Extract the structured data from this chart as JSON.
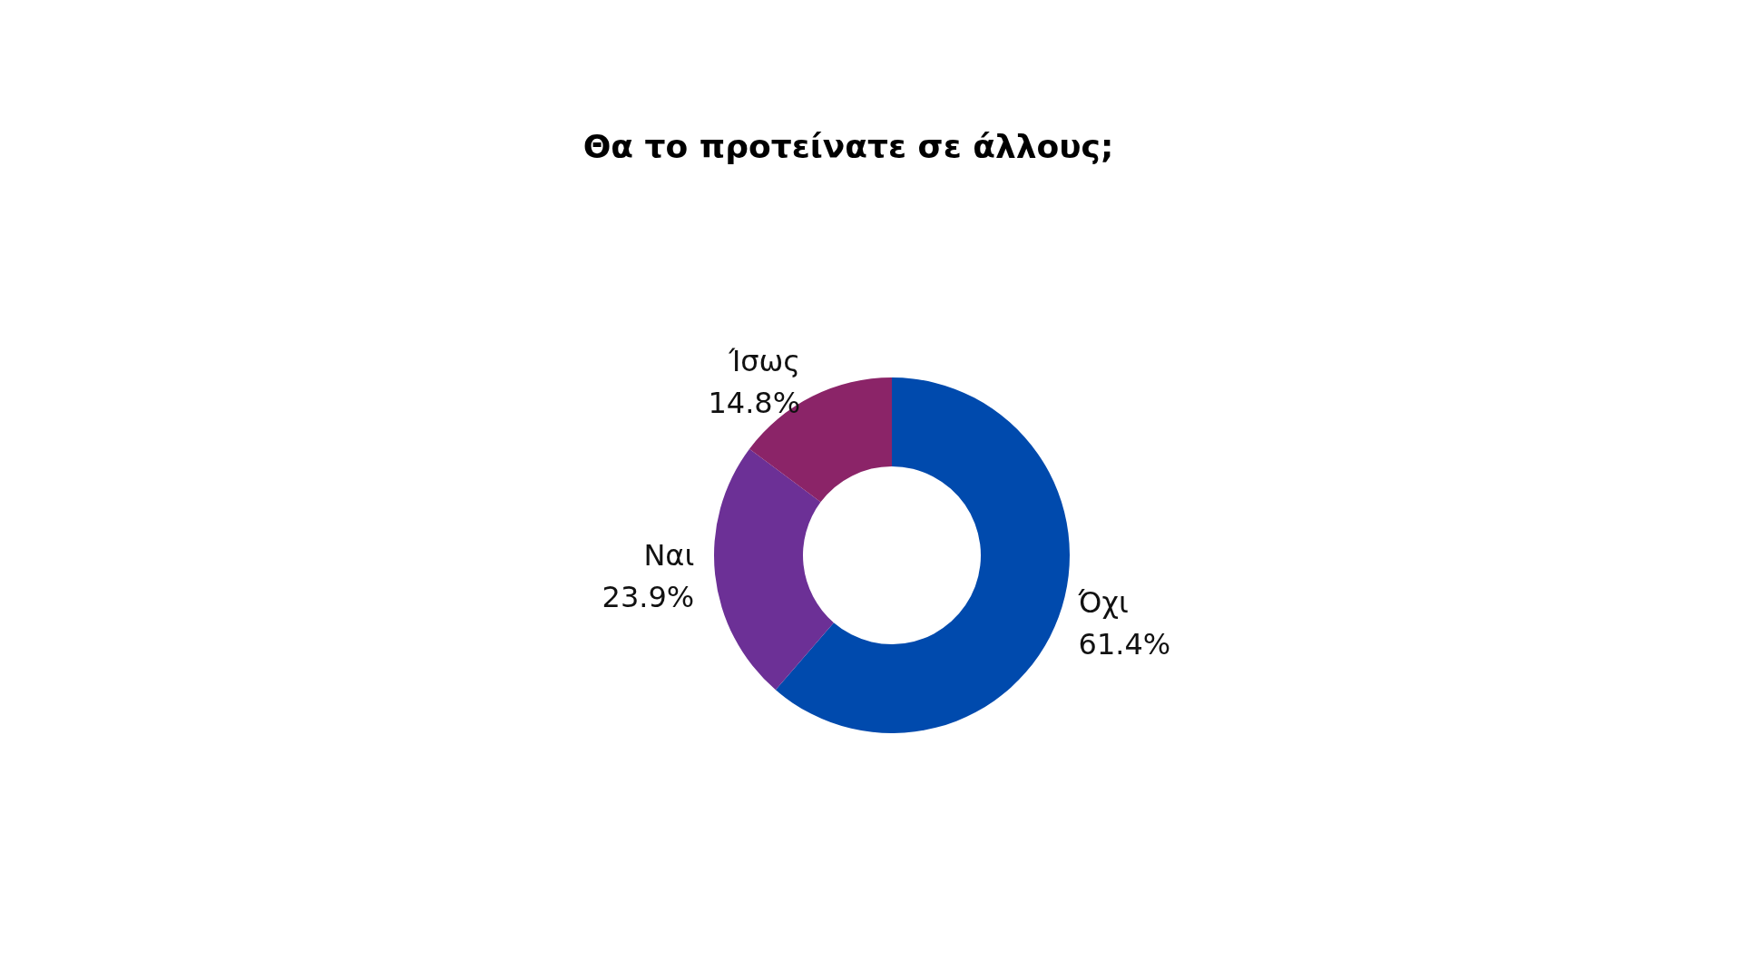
{
  "chart_data": {
    "type": "donut",
    "title": "Θα το προτείνατε σε άλλους;",
    "categories": [
      "Όχι",
      "Ναι",
      "Ίσως"
    ],
    "values": [
      61.4,
      23.9,
      14.8
    ],
    "colors": [
      "#004aad",
      "#6c3096",
      "#8b2468"
    ],
    "value_labels": [
      "61.4%",
      "23.9%",
      "14.8%"
    ],
    "legend": false
  }
}
